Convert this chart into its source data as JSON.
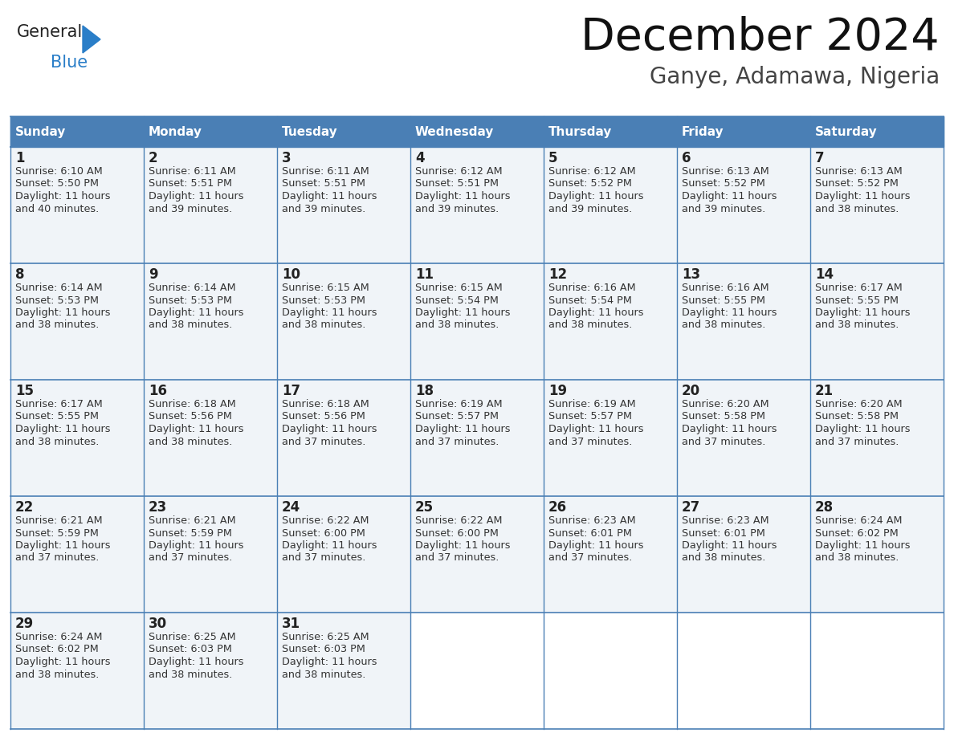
{
  "title": "December 2024",
  "subtitle": "Ganye, Adamawa, Nigeria",
  "header_color": "#4a7fb5",
  "header_text_color": "#ffffff",
  "cell_bg_color": "#f0f4f8",
  "empty_cell_bg": "#ffffff",
  "border_color": "#4a7fb5",
  "day_num_color": "#222222",
  "text_color": "#333333",
  "days_of_week": [
    "Sunday",
    "Monday",
    "Tuesday",
    "Wednesday",
    "Thursday",
    "Friday",
    "Saturday"
  ],
  "logo_general_color": "#222222",
  "logo_blue_color": "#2a7ec8",
  "weeks": [
    [
      {
        "day": 1,
        "sunrise": "6:10 AM",
        "sunset": "5:50 PM",
        "daylight": "11 hours and 40 minutes."
      },
      {
        "day": 2,
        "sunrise": "6:11 AM",
        "sunset": "5:51 PM",
        "daylight": "11 hours and 39 minutes."
      },
      {
        "day": 3,
        "sunrise": "6:11 AM",
        "sunset": "5:51 PM",
        "daylight": "11 hours and 39 minutes."
      },
      {
        "day": 4,
        "sunrise": "6:12 AM",
        "sunset": "5:51 PM",
        "daylight": "11 hours and 39 minutes."
      },
      {
        "day": 5,
        "sunrise": "6:12 AM",
        "sunset": "5:52 PM",
        "daylight": "11 hours and 39 minutes."
      },
      {
        "day": 6,
        "sunrise": "6:13 AM",
        "sunset": "5:52 PM",
        "daylight": "11 hours and 39 minutes."
      },
      {
        "day": 7,
        "sunrise": "6:13 AM",
        "sunset": "5:52 PM",
        "daylight": "11 hours and 38 minutes."
      }
    ],
    [
      {
        "day": 8,
        "sunrise": "6:14 AM",
        "sunset": "5:53 PM",
        "daylight": "11 hours and 38 minutes."
      },
      {
        "day": 9,
        "sunrise": "6:14 AM",
        "sunset": "5:53 PM",
        "daylight": "11 hours and 38 minutes."
      },
      {
        "day": 10,
        "sunrise": "6:15 AM",
        "sunset": "5:53 PM",
        "daylight": "11 hours and 38 minutes."
      },
      {
        "day": 11,
        "sunrise": "6:15 AM",
        "sunset": "5:54 PM",
        "daylight": "11 hours and 38 minutes."
      },
      {
        "day": 12,
        "sunrise": "6:16 AM",
        "sunset": "5:54 PM",
        "daylight": "11 hours and 38 minutes."
      },
      {
        "day": 13,
        "sunrise": "6:16 AM",
        "sunset": "5:55 PM",
        "daylight": "11 hours and 38 minutes."
      },
      {
        "day": 14,
        "sunrise": "6:17 AM",
        "sunset": "5:55 PM",
        "daylight": "11 hours and 38 minutes."
      }
    ],
    [
      {
        "day": 15,
        "sunrise": "6:17 AM",
        "sunset": "5:55 PM",
        "daylight": "11 hours and 38 minutes."
      },
      {
        "day": 16,
        "sunrise": "6:18 AM",
        "sunset": "5:56 PM",
        "daylight": "11 hours and 38 minutes."
      },
      {
        "day": 17,
        "sunrise": "6:18 AM",
        "sunset": "5:56 PM",
        "daylight": "11 hours and 37 minutes."
      },
      {
        "day": 18,
        "sunrise": "6:19 AM",
        "sunset": "5:57 PM",
        "daylight": "11 hours and 37 minutes."
      },
      {
        "day": 19,
        "sunrise": "6:19 AM",
        "sunset": "5:57 PM",
        "daylight": "11 hours and 37 minutes."
      },
      {
        "day": 20,
        "sunrise": "6:20 AM",
        "sunset": "5:58 PM",
        "daylight": "11 hours and 37 minutes."
      },
      {
        "day": 21,
        "sunrise": "6:20 AM",
        "sunset": "5:58 PM",
        "daylight": "11 hours and 37 minutes."
      }
    ],
    [
      {
        "day": 22,
        "sunrise": "6:21 AM",
        "sunset": "5:59 PM",
        "daylight": "11 hours and 37 minutes."
      },
      {
        "day": 23,
        "sunrise": "6:21 AM",
        "sunset": "5:59 PM",
        "daylight": "11 hours and 37 minutes."
      },
      {
        "day": 24,
        "sunrise": "6:22 AM",
        "sunset": "6:00 PM",
        "daylight": "11 hours and 37 minutes."
      },
      {
        "day": 25,
        "sunrise": "6:22 AM",
        "sunset": "6:00 PM",
        "daylight": "11 hours and 37 minutes."
      },
      {
        "day": 26,
        "sunrise": "6:23 AM",
        "sunset": "6:01 PM",
        "daylight": "11 hours and 37 minutes."
      },
      {
        "day": 27,
        "sunrise": "6:23 AM",
        "sunset": "6:01 PM",
        "daylight": "11 hours and 38 minutes."
      },
      {
        "day": 28,
        "sunrise": "6:24 AM",
        "sunset": "6:02 PM",
        "daylight": "11 hours and 38 minutes."
      }
    ],
    [
      {
        "day": 29,
        "sunrise": "6:24 AM",
        "sunset": "6:02 PM",
        "daylight": "11 hours and 38 minutes."
      },
      {
        "day": 30,
        "sunrise": "6:25 AM",
        "sunset": "6:03 PM",
        "daylight": "11 hours and 38 minutes."
      },
      {
        "day": 31,
        "sunrise": "6:25 AM",
        "sunset": "6:03 PM",
        "daylight": "11 hours and 38 minutes."
      },
      null,
      null,
      null,
      null
    ]
  ]
}
